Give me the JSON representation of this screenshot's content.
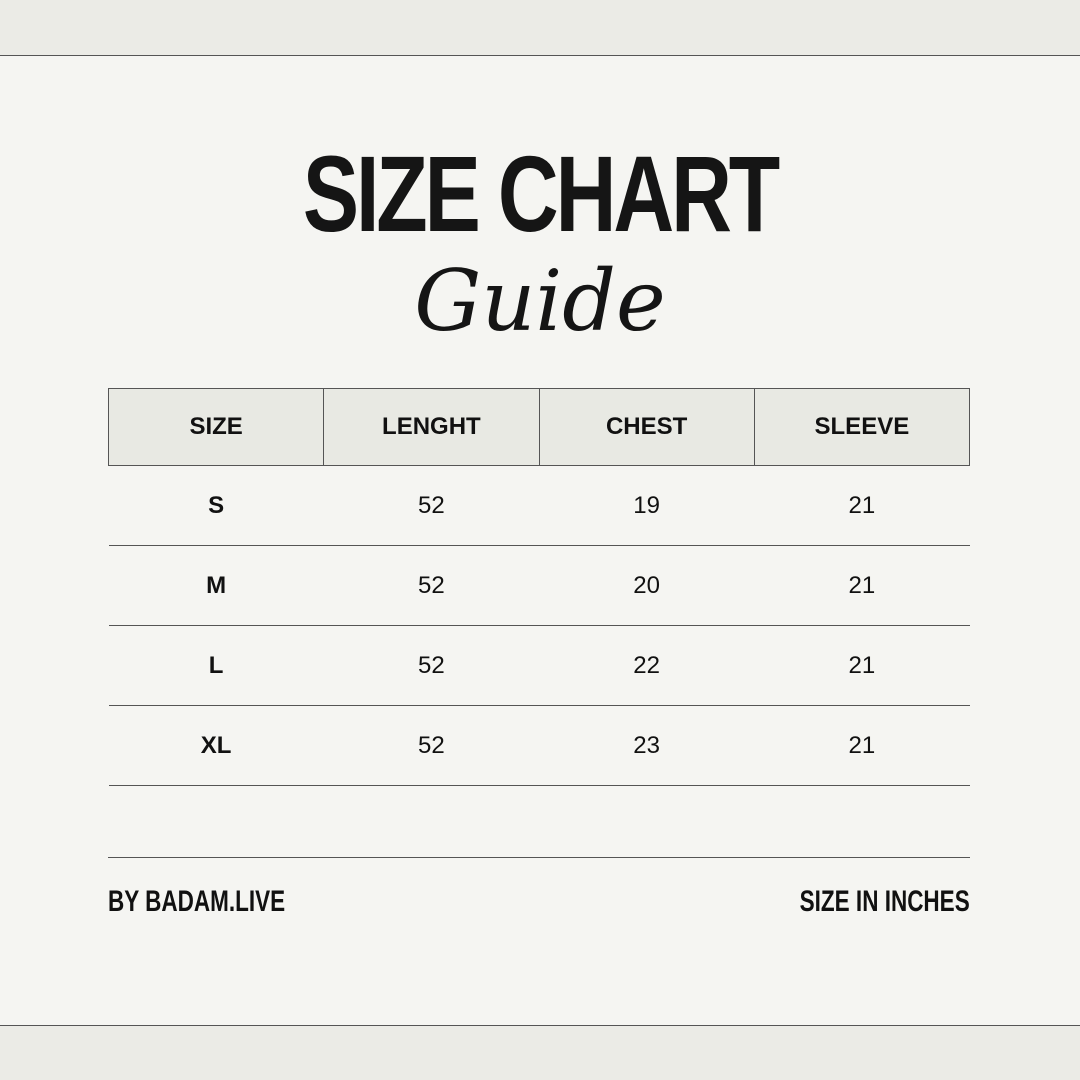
{
  "title": "SIZE CHART",
  "subtitle": "Guide",
  "table": {
    "headers": [
      "SIZE",
      "LENGHT",
      "CHEST",
      "SLEEVE"
    ],
    "rows": [
      [
        "S",
        "52",
        "19",
        "21"
      ],
      [
        "M",
        "52",
        "20",
        "21"
      ],
      [
        "L",
        "52",
        "22",
        "21"
      ],
      [
        "XL",
        "52",
        "23",
        "21"
      ]
    ]
  },
  "footer": {
    "left": "BY BADAM.LIVE",
    "right": "SIZE IN INCHES"
  }
}
